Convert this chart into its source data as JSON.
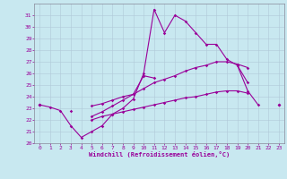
{
  "xlabel": "Windchill (Refroidissement éolien,°C)",
  "bg_color": "#c8e8f0",
  "grid_color": "#aaaacc",
  "line_color": "#990099",
  "x": [
    0,
    1,
    2,
    3,
    4,
    5,
    6,
    7,
    8,
    9,
    10,
    11,
    12,
    13,
    14,
    15,
    16,
    17,
    18,
    19,
    20,
    21,
    22,
    23
  ],
  "y1": [
    23.3,
    23.1,
    22.8,
    21.5,
    20.5,
    21.0,
    21.5,
    22.5,
    23.0,
    23.8,
    26.0,
    31.5,
    29.5,
    31.0,
    30.5,
    29.5,
    28.5,
    28.5,
    27.2,
    26.7,
    24.5,
    23.3,
    null,
    null
  ],
  "y2": [
    23.3,
    null,
    null,
    22.8,
    null,
    22.3,
    22.7,
    23.2,
    23.7,
    24.2,
    25.8,
    25.6,
    null,
    null,
    null,
    null,
    null,
    null,
    null,
    26.7,
    25.2,
    null,
    null,
    23.3
  ],
  "y3": [
    23.3,
    null,
    null,
    null,
    null,
    23.2,
    23.4,
    23.7,
    24.0,
    24.2,
    24.7,
    25.2,
    25.5,
    25.8,
    26.2,
    26.5,
    26.7,
    27.0,
    27.0,
    26.8,
    26.5,
    null,
    null,
    23.3
  ],
  "y4": [
    23.3,
    null,
    null,
    null,
    null,
    22.0,
    22.3,
    22.5,
    22.7,
    22.9,
    23.1,
    23.3,
    23.5,
    23.7,
    23.9,
    24.0,
    24.2,
    24.4,
    24.5,
    24.5,
    24.3,
    null,
    null,
    23.3
  ],
  "xlim": [
    -0.5,
    23.5
  ],
  "ylim": [
    20,
    32
  ],
  "yticks": [
    20,
    21,
    22,
    23,
    24,
    25,
    26,
    27,
    28,
    29,
    30,
    31
  ],
  "xticks": [
    0,
    1,
    2,
    3,
    4,
    5,
    6,
    7,
    8,
    9,
    10,
    11,
    12,
    13,
    14,
    15,
    16,
    17,
    18,
    19,
    20,
    21,
    22,
    23
  ]
}
